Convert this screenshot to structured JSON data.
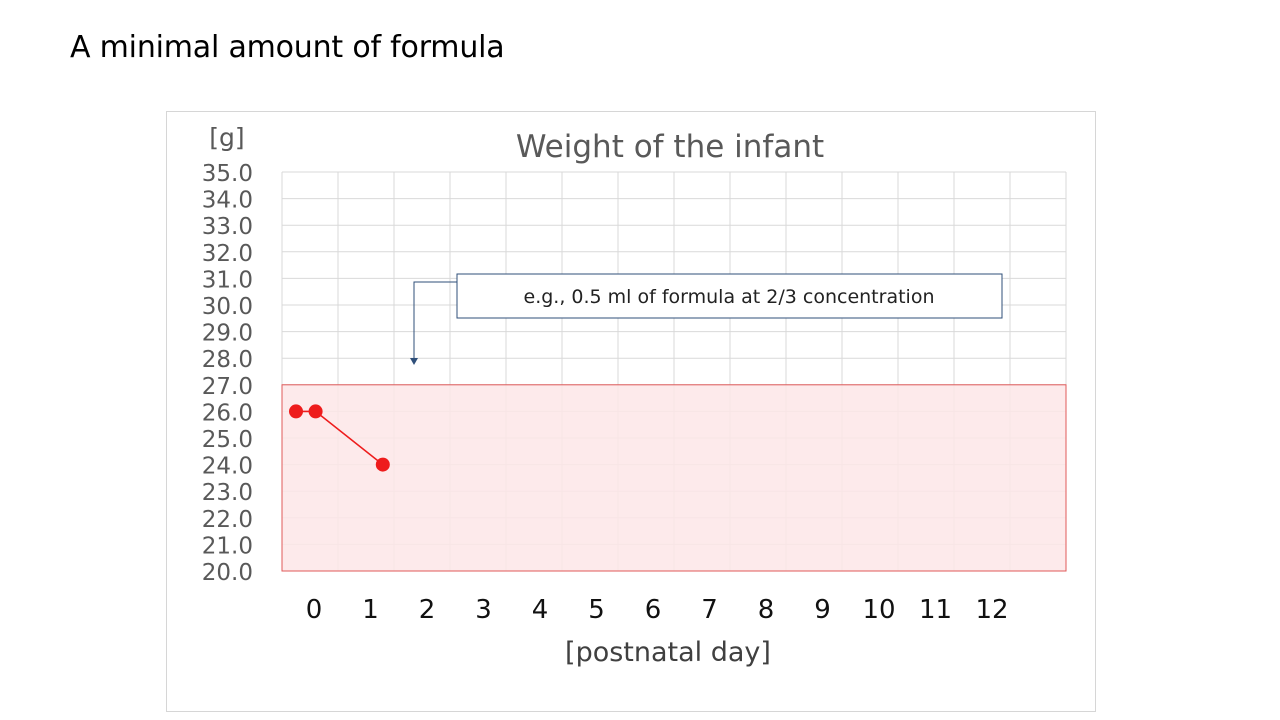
{
  "slide": {
    "title": "A minimal amount of formula"
  },
  "colors": {
    "point": "#ee1c1c",
    "line": "#ee1c1c",
    "target_fill": "#fde6e8",
    "target_border": "#e05a5a",
    "grid": "#d9d9d9",
    "axis_text": "#595959",
    "annotation_border": "#2f4f7a"
  },
  "annotation": {
    "text": "e.g.,  0.5 ml of formula at 2/3 concentration"
  },
  "chart_data": {
    "type": "line",
    "title": "Weight of the infant",
    "ylabel": "[g]",
    "xlabel": "[postnatal day]",
    "xlim": [
      0,
      14
    ],
    "ylim": [
      20,
      35
    ],
    "yticks": [
      "20.0",
      "21.0",
      "22.0",
      "23.0",
      "24.0",
      "25.0",
      "26.0",
      "27.0",
      "28.0",
      "29.0",
      "30.0",
      "31.0",
      "32.0",
      "33.0",
      "34.0",
      "35.0"
    ],
    "xticks": [
      "0",
      "1",
      "2",
      "3",
      "4",
      "5",
      "6",
      "7",
      "8",
      "9",
      "10",
      "11",
      "12"
    ],
    "grid": true,
    "target_range": {
      "ymin": 20,
      "ymax": 27
    },
    "series": [
      {
        "x": [
          0.25,
          0.6,
          1.8
        ],
        "y": [
          26.0,
          26.0,
          24.0
        ]
      }
    ]
  }
}
